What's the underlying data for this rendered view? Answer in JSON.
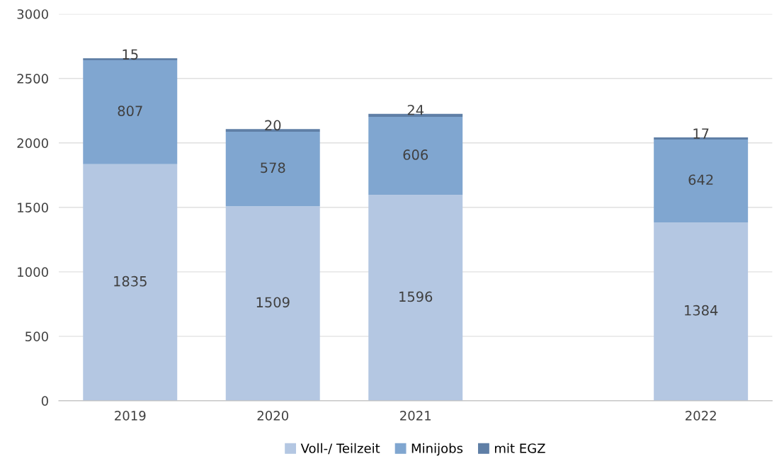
{
  "chart_data": {
    "type": "bar",
    "stacked": true,
    "categories": [
      "2019",
      "2020",
      "2021",
      null,
      "2022"
    ],
    "series": [
      {
        "name": "Voll-/ Teilzeit",
        "color": "#b4c7e2",
        "values": [
          1835,
          1509,
          1596,
          null,
          1384
        ]
      },
      {
        "name": "Minijobs",
        "color": "#80a6d0",
        "values": [
          807,
          578,
          606,
          null,
          642
        ]
      },
      {
        "name": "mit EGZ",
        "color": "#5f7fa6",
        "values": [
          15,
          20,
          24,
          null,
          17
        ]
      }
    ],
    "ylim": [
      0,
      3000
    ],
    "yticks": [
      0,
      500,
      1000,
      1500,
      2000,
      2500,
      3000
    ],
    "grid": "y",
    "legend": "bottom",
    "data_labels": true
  }
}
